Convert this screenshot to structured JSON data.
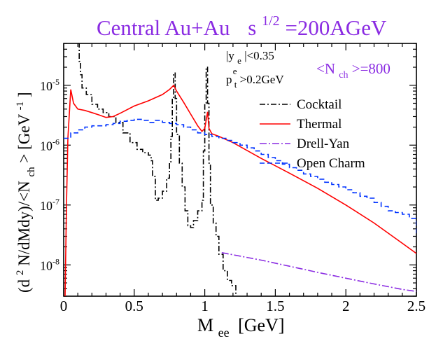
{
  "chart_data": {
    "type": "line",
    "title_main": "Central Au+Au",
    "title_s": "s",
    "title_exp": "1/2",
    "title_tail": "=200AGeV",
    "xlabel_main": "M",
    "xlabel_sub": "ee",
    "xlabel_unit": "[GeV]",
    "ylabel_a": "(d",
    "ylabel_a_sup": "2",
    "ylabel_b": "N/dMdy)/<N",
    "ylabel_b_sub": "ch",
    "ylabel_c": "> [GeV",
    "ylabel_c_sup": "-1",
    "ylabel_d": "]",
    "cut1_a": "|y",
    "cut1_sub": "e",
    "cut1_b": "|<0.35",
    "cut2_a": "p",
    "cut2_sup": "e",
    "cut2_sub": "t",
    "cut2_b": ">0.2GeV",
    "nch_a": "<N",
    "nch_sub": "ch",
    "nch_b": ">=800",
    "xlim": [
      0,
      2.5
    ],
    "ylim": [
      3e-09,
      5e-05
    ],
    "ylog": true,
    "xticks": [
      "0",
      "0.5",
      "1",
      "1.5",
      "2",
      "2.5"
    ],
    "xtick_values": [
      0,
      0.5,
      1,
      1.5,
      2,
      2.5
    ],
    "yticks": [
      {
        "value": 1e-08,
        "base": "10",
        "exp": "-8"
      },
      {
        "value": 1e-07,
        "base": "10",
        "exp": "-7"
      },
      {
        "value": 1e-06,
        "base": "10",
        "exp": "-6"
      },
      {
        "value": 1e-05,
        "base": "10",
        "exp": "-5"
      }
    ],
    "legend_position": "right",
    "colors": {
      "title": "#8a2be2",
      "annotation": "#8a2be2"
    },
    "series": [
      {
        "name": "Cocktail",
        "color": "#000000",
        "dash": "8,3,2,3",
        "step": true,
        "points": [
          [
            0.1,
            5e-05
          ],
          [
            0.11,
            2.5e-05
          ],
          [
            0.12,
            1.5e-05
          ],
          [
            0.13,
            9e-06
          ],
          [
            0.16,
            7e-06
          ],
          [
            0.2,
            4.8e-06
          ],
          [
            0.24,
            4e-06
          ],
          [
            0.28,
            3.5e-06
          ],
          [
            0.32,
            3e-06
          ],
          [
            0.37,
            2.4e-06
          ],
          [
            0.42,
            1.6e-06
          ],
          [
            0.47,
            1.1e-06
          ],
          [
            0.52,
            8.5e-07
          ],
          [
            0.56,
            7.5e-07
          ],
          [
            0.6,
            6.8e-07
          ],
          [
            0.62,
            5.5e-07
          ],
          [
            0.63,
            3e-07
          ],
          [
            0.65,
            1.2e-07
          ],
          [
            0.67,
            1.3e-07
          ],
          [
            0.7,
            1.7e-07
          ],
          [
            0.73,
            2.8e-07
          ],
          [
            0.75,
            5e-07
          ],
          [
            0.76,
            1.4e-06
          ],
          [
            0.77,
            6e-06
          ],
          [
            0.78,
            1.6e-05
          ],
          [
            0.79,
            6e-06
          ],
          [
            0.8,
            1.5e-06
          ],
          [
            0.82,
            5e-07
          ],
          [
            0.84,
            2e-07
          ],
          [
            0.86,
            8e-08
          ],
          [
            0.88,
            4.5e-08
          ],
          [
            0.9,
            4.2e-08
          ],
          [
            0.92,
            5.5e-08
          ],
          [
            0.95,
            8e-08
          ],
          [
            0.98,
            1.2e-07
          ],
          [
            0.99,
            8e-07
          ],
          [
            1.0,
            5e-06
          ],
          [
            1.01,
            2e-05
          ],
          [
            1.02,
            5e-06
          ],
          [
            1.03,
            5e-07
          ],
          [
            1.04,
            1e-07
          ],
          [
            1.06,
            5e-08
          ],
          [
            1.08,
            3e-08
          ],
          [
            1.1,
            1.5e-08
          ],
          [
            1.13,
            8e-09
          ],
          [
            1.16,
            5.5e-09
          ],
          [
            1.19,
            4.5e-09
          ],
          [
            1.22,
            3e-09
          ]
        ]
      },
      {
        "name": "Thermal",
        "color": "#ff0000",
        "dash": "",
        "step": false,
        "points": [
          [
            0.01,
            3e-09
          ],
          [
            0.02,
            1e-07
          ],
          [
            0.03,
            1.3e-06
          ],
          [
            0.05,
            8.5e-06
          ],
          [
            0.07,
            5e-06
          ],
          [
            0.1,
            4e-06
          ],
          [
            0.15,
            3.8e-06
          ],
          [
            0.2,
            3.5e-06
          ],
          [
            0.25,
            3.2e-06
          ],
          [
            0.3,
            2.9e-06
          ],
          [
            0.35,
            3e-06
          ],
          [
            0.4,
            3.4e-06
          ],
          [
            0.5,
            4.5e-06
          ],
          [
            0.6,
            5.5e-06
          ],
          [
            0.7,
            7e-06
          ],
          [
            0.75,
            8.5e-06
          ],
          [
            0.78,
            1e-05
          ],
          [
            0.8,
            8e-06
          ],
          [
            0.85,
            5.2e-06
          ],
          [
            0.9,
            3.3e-06
          ],
          [
            0.95,
            2.1e-06
          ],
          [
            0.98,
            1.7e-06
          ],
          [
            1.0,
            1.9e-06
          ],
          [
            1.02,
            3.6e-06
          ],
          [
            1.03,
            1.9e-06
          ],
          [
            1.05,
            1.55e-06
          ],
          [
            1.1,
            1.4e-06
          ],
          [
            1.2,
            1.1e-06
          ],
          [
            1.4,
            6e-07
          ],
          [
            1.6,
            3.4e-07
          ],
          [
            1.8,
            1.9e-07
          ],
          [
            2.0,
            1e-07
          ],
          [
            2.2,
            5e-08
          ],
          [
            2.4,
            2.3e-08
          ],
          [
            2.5,
            1.55e-08
          ]
        ]
      },
      {
        "name": "Drell-Yan",
        "color": "#8a2be2",
        "dash": "10,3,2,3",
        "step": false,
        "points": [
          [
            1.12,
            1.6e-08
          ],
          [
            1.4,
            1.2e-08
          ],
          [
            1.6,
            9.5e-09
          ],
          [
            1.8,
            7.5e-09
          ],
          [
            2.0,
            6e-09
          ],
          [
            2.2,
            4.8e-09
          ],
          [
            2.4,
            3.9e-09
          ],
          [
            2.5,
            3.6e-09
          ]
        ]
      },
      {
        "name": "Open Charm",
        "color": "#0033ff",
        "dash": "7,4",
        "step": true,
        "points": [
          [
            0.0,
            1.3e-06
          ],
          [
            0.05,
            1.6e-06
          ],
          [
            0.1,
            1.8e-06
          ],
          [
            0.15,
            2e-06
          ],
          [
            0.2,
            2.1e-06
          ],
          [
            0.25,
            2.1e-06
          ],
          [
            0.3,
            2.2e-06
          ],
          [
            0.35,
            2.3e-06
          ],
          [
            0.4,
            2.5e-06
          ],
          [
            0.45,
            2.6e-06
          ],
          [
            0.5,
            2.7e-06
          ],
          [
            0.55,
            2.6e-06
          ],
          [
            0.6,
            2.4e-06
          ],
          [
            0.65,
            2.6e-06
          ],
          [
            0.7,
            2.4e-06
          ],
          [
            0.75,
            2.3e-06
          ],
          [
            0.8,
            2.2e-06
          ],
          [
            0.85,
            2e-06
          ],
          [
            0.9,
            1.8e-06
          ],
          [
            0.95,
            1.6e-06
          ],
          [
            1.0,
            1.5e-06
          ],
          [
            1.05,
            1.4e-06
          ],
          [
            1.1,
            1.3e-06
          ],
          [
            1.15,
            1.2e-06
          ],
          [
            1.2,
            1.1e-06
          ],
          [
            1.25,
            1e-06
          ],
          [
            1.3,
            9e-07
          ],
          [
            1.35,
            8e-07
          ],
          [
            1.4,
            7e-07
          ],
          [
            1.45,
            6.2e-07
          ],
          [
            1.5,
            5.5e-07
          ],
          [
            1.55,
            4.8e-07
          ],
          [
            1.6,
            4.2e-07
          ],
          [
            1.65,
            3.8e-07
          ],
          [
            1.7,
            3.3e-07
          ],
          [
            1.75,
            3e-07
          ],
          [
            1.8,
            2.7e-07
          ],
          [
            1.85,
            2.4e-07
          ],
          [
            1.9,
            2.2e-07
          ],
          [
            1.95,
            2e-07
          ],
          [
            2.0,
            1.8e-07
          ],
          [
            2.05,
            1.6e-07
          ],
          [
            2.1,
            1.4e-07
          ],
          [
            2.15,
            1.3e-07
          ],
          [
            2.2,
            1.1e-07
          ],
          [
            2.25,
            9.5e-08
          ],
          [
            2.3,
            8e-08
          ],
          [
            2.35,
            7.5e-08
          ],
          [
            2.4,
            7e-08
          ],
          [
            2.45,
            6e-08
          ],
          [
            2.5,
            3e-08
          ]
        ]
      }
    ]
  }
}
